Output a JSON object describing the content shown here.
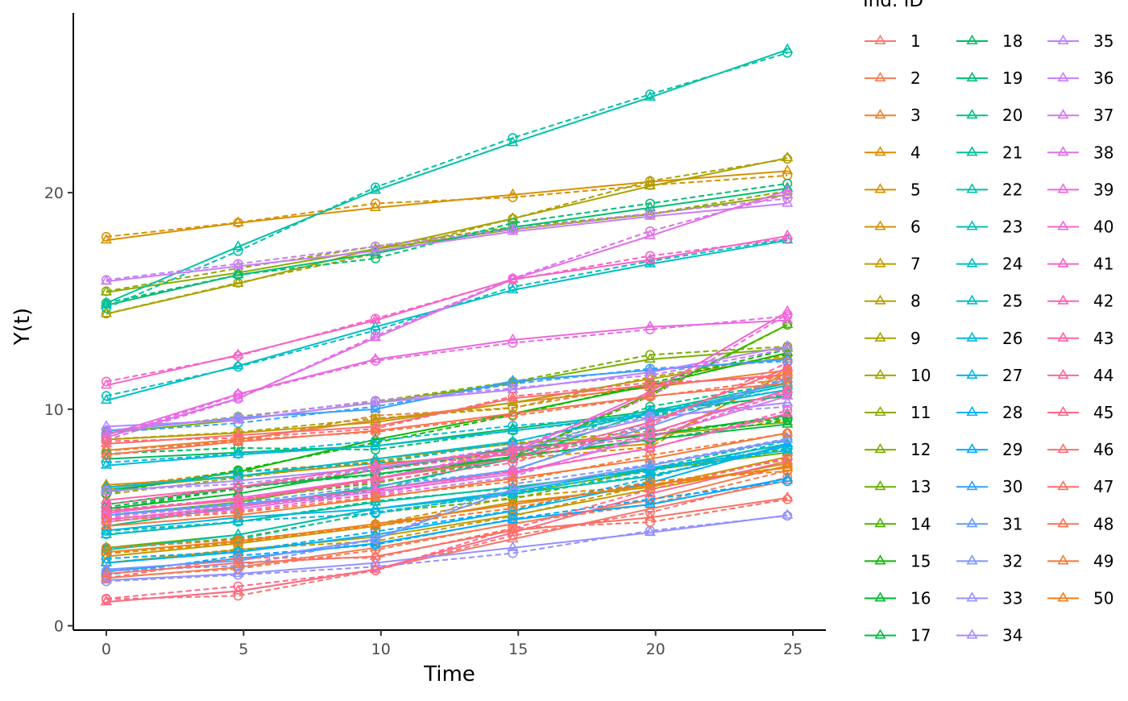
{
  "chart_data": {
    "type": "line",
    "xlabel": "Time",
    "ylabel": "Y(t)",
    "legend_title": "Ind. ID",
    "legend_position": "right",
    "grid": false,
    "xlim": [
      -1.2,
      26.2
    ],
    "ylim": [
      -0.2,
      28.3
    ],
    "x_ticks": [
      0,
      5,
      10,
      15,
      20,
      25
    ],
    "y_ticks": [
      0,
      10,
      20
    ],
    "x": [
      0,
      4.8,
      9.8,
      14.8,
      19.8,
      24.8
    ],
    "line_styles": {
      "observed": "solid, triangle markers",
      "predicted": "dashed, circle markers"
    },
    "series": [
      {
        "name": "1",
        "color": "#F8766D",
        "values": [
          1.1,
          1.6,
          2.6,
          4.0,
          5.4,
          6.7
        ]
      },
      {
        "name": "2",
        "color": "#F27D52",
        "values": [
          2.2,
          2.7,
          3.6,
          4.7,
          5.8,
          7.4
        ]
      },
      {
        "name": "3",
        "color": "#EA8331",
        "values": [
          8.1,
          8.6,
          9.5,
          10.3,
          11.0,
          11.8
        ]
      },
      {
        "name": "4",
        "color": "#E18A00",
        "values": [
          6.5,
          6.9,
          7.5,
          7.9,
          8.4,
          11.7
        ]
      },
      {
        "name": "5",
        "color": "#D89000",
        "values": [
          17.8,
          18.6,
          19.3,
          19.9,
          20.5,
          21.0
        ]
      },
      {
        "name": "6",
        "color": "#CE9500",
        "values": [
          3.2,
          3.8,
          4.6,
          5.7,
          6.4,
          7.8
        ]
      },
      {
        "name": "7",
        "color": "#C49A00",
        "values": [
          2.9,
          3.5,
          4.1,
          5.1,
          6.3,
          7.5
        ]
      },
      {
        "name": "8",
        "color": "#B79F00",
        "values": [
          8.6,
          8.9,
          9.4,
          10.3,
          11.4,
          12.4
        ]
      },
      {
        "name": "9",
        "color": "#AAA200",
        "values": [
          14.4,
          15.8,
          17.4,
          18.8,
          20.3,
          21.6
        ]
      },
      {
        "name": "10",
        "color": "#9DA700",
        "values": [
          6.3,
          6.9,
          7.7,
          8.4,
          8.8,
          9.4
        ]
      },
      {
        "name": "11",
        "color": "#8EAB00",
        "values": [
          15.4,
          16.3,
          17.4,
          18.3,
          19.0,
          19.9
        ]
      },
      {
        "name": "12",
        "color": "#7CAE00",
        "values": [
          8.9,
          9.5,
          10.3,
          11.2,
          12.3,
          12.8
        ]
      },
      {
        "name": "13",
        "color": "#66B200",
        "values": [
          3.6,
          4.2,
          5.4,
          6.1,
          7.2,
          8.0
        ]
      },
      {
        "name": "14",
        "color": "#4BB500",
        "values": [
          5.1,
          5.7,
          6.8,
          7.8,
          10.7,
          13.9
        ]
      },
      {
        "name": "15",
        "color": "#0CB702",
        "values": [
          6.2,
          7.1,
          8.6,
          9.8,
          11.1,
          12.6
        ]
      },
      {
        "name": "16",
        "color": "#00B92A",
        "values": [
          5.4,
          6.1,
          7.2,
          8.2,
          8.8,
          9.7
        ]
      },
      {
        "name": "17",
        "color": "#00BB47",
        "values": [
          5.6,
          6.4,
          7.0,
          7.8,
          8.6,
          9.3
        ]
      },
      {
        "name": "18",
        "color": "#00BD5F",
        "values": [
          7.7,
          8.0,
          8.3,
          9.1,
          9.9,
          10.6
        ]
      },
      {
        "name": "19",
        "color": "#00BE74",
        "values": [
          14.8,
          16.2,
          17.2,
          18.4,
          19.3,
          20.2
        ]
      },
      {
        "name": "20",
        "color": "#00C087",
        "values": [
          4.6,
          5.5,
          6.4,
          7.7,
          9.9,
          11.2
        ]
      },
      {
        "name": "21",
        "color": "#00C098",
        "values": [
          4.2,
          4.8,
          5.7,
          6.4,
          7.2,
          8.4
        ]
      },
      {
        "name": "22",
        "color": "#00C1A8",
        "values": [
          14.9,
          17.5,
          20.1,
          22.3,
          24.4,
          26.6
        ]
      },
      {
        "name": "23",
        "color": "#00C0B8",
        "values": [
          3.5,
          4.2,
          5.4,
          6.1,
          6.9,
          8.3
        ]
      },
      {
        "name": "24",
        "color": "#00BFC4",
        "values": [
          10.4,
          12.0,
          13.8,
          15.5,
          16.7,
          17.8
        ]
      },
      {
        "name": "25",
        "color": "#00BDD1",
        "values": [
          6.4,
          6.9,
          7.7,
          8.5,
          9.8,
          11.1
        ]
      },
      {
        "name": "26",
        "color": "#00BADE",
        "values": [
          7.4,
          7.9,
          8.3,
          9.0,
          9.8,
          10.9
        ]
      },
      {
        "name": "27",
        "color": "#00B6EB",
        "values": [
          4.4,
          5.0,
          5.4,
          6.2,
          7.3,
          8.1
        ]
      },
      {
        "name": "28",
        "color": "#00B0F6",
        "values": [
          2.9,
          3.4,
          4.2,
          5.3,
          6.6,
          8.4
        ]
      },
      {
        "name": "29",
        "color": "#00A9FF",
        "values": [
          2.5,
          3.1,
          3.8,
          4.9,
          5.6,
          6.8
        ]
      },
      {
        "name": "30",
        "color": "#35A2FF",
        "values": [
          9.0,
          9.6,
          10.0,
          11.3,
          11.8,
          12.3
        ]
      },
      {
        "name": "31",
        "color": "#619CFF",
        "values": [
          5.1,
          5.6,
          6.3,
          7.2,
          9.2,
          11.4
        ]
      },
      {
        "name": "32",
        "color": "#7C96FF",
        "values": [
          2.6,
          3.0,
          4.0,
          6.3,
          7.4,
          8.6
        ]
      },
      {
        "name": "33",
        "color": "#9590FF",
        "values": [
          2.1,
          2.4,
          2.9,
          3.6,
          4.3,
          5.1
        ]
      },
      {
        "name": "34",
        "color": "#A98AFF",
        "values": [
          6.2,
          6.7,
          7.3,
          8.1,
          9.6,
          10.3
        ]
      },
      {
        "name": "35",
        "color": "#BA83FF",
        "values": [
          9.2,
          9.5,
          10.3,
          10.9,
          11.7,
          12.9
        ]
      },
      {
        "name": "36",
        "color": "#C97DF9",
        "values": [
          15.9,
          16.6,
          17.3,
          18.2,
          18.9,
          19.5
        ]
      },
      {
        "name": "37",
        "color": "#D677F2",
        "values": [
          4.8,
          5.4,
          6.2,
          7.0,
          8.7,
          10.6
        ]
      },
      {
        "name": "38",
        "color": "#E26EEA",
        "values": [
          8.7,
          10.5,
          13.3,
          16.0,
          18.0,
          20.1
        ]
      },
      {
        "name": "39",
        "color": "#EB68E0",
        "values": [
          8.8,
          10.7,
          12.3,
          13.2,
          13.8,
          14.1
        ]
      },
      {
        "name": "40",
        "color": "#F265D4",
        "values": [
          5.2,
          5.9,
          6.8,
          8.0,
          10.8,
          14.5
        ]
      },
      {
        "name": "41",
        "color": "#F863C8",
        "values": [
          11.1,
          12.5,
          14.1,
          16.0,
          16.9,
          18.0
        ]
      },
      {
        "name": "42",
        "color": "#FC62B9",
        "values": [
          4.9,
          5.5,
          6.3,
          7.1,
          8.2,
          9.8
        ]
      },
      {
        "name": "43",
        "color": "#FE63A9",
        "values": [
          5.8,
          6.4,
          7.4,
          8.1,
          8.9,
          10.9
        ]
      },
      {
        "name": "44",
        "color": "#FF6598",
        "values": [
          5.3,
          5.8,
          6.8,
          7.7,
          9.4,
          11.9
        ]
      },
      {
        "name": "45",
        "color": "#FF6887",
        "values": [
          1.1,
          1.6,
          2.6,
          4.3,
          6.1,
          7.6
        ]
      },
      {
        "name": "46",
        "color": "#FD6C76",
        "values": [
          8.4,
          8.8,
          9.2,
          10.5,
          11.1,
          11.6
        ]
      },
      {
        "name": "47",
        "color": "#FB7064",
        "values": [
          2.4,
          2.9,
          3.2,
          4.4,
          5.0,
          5.9
        ]
      },
      {
        "name": "48",
        "color": "#F87551",
        "values": [
          7.9,
          8.5,
          9.0,
          9.8,
          10.6,
          11.2
        ]
      },
      {
        "name": "49",
        "color": "#F5793A",
        "values": [
          4.6,
          5.1,
          5.9,
          6.8,
          7.7,
          8.9
        ]
      },
      {
        "name": "50",
        "color": "#F27D1C",
        "values": [
          3.4,
          3.9,
          4.7,
          5.6,
          6.5,
          7.3
        ]
      }
    ]
  }
}
